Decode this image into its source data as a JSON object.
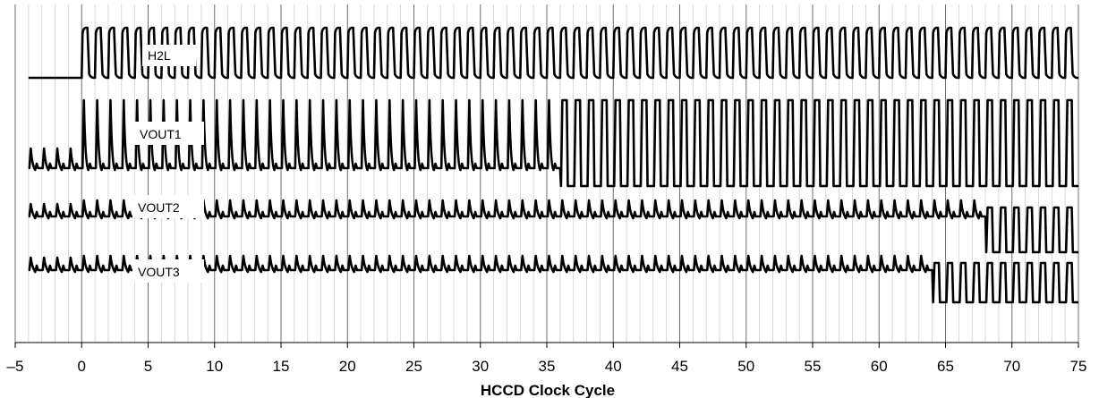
{
  "chart_data": {
    "type": "line",
    "title": "",
    "xlabel": "HCCD Clock Cycle",
    "ylabel": "",
    "xlim": [
      -5,
      75
    ],
    "x_ticks": [
      -5,
      0,
      5,
      10,
      15,
      20,
      25,
      30,
      35,
      40,
      45,
      50,
      55,
      60,
      65,
      70,
      75
    ],
    "x_tick_labels": [
      "–5",
      "0",
      "5",
      "10",
      "15",
      "20",
      "25",
      "30",
      "35",
      "40",
      "45",
      "50",
      "55",
      "60",
      "65",
      "70",
      "75"
    ],
    "vertical_grid_step": 1,
    "legend": "inline labels",
    "line_color": "#000000",
    "series": [
      {
        "name": "H2L",
        "waveform": "square clock",
        "active_from": 0
      },
      {
        "name": "VOUT1",
        "waveform": "pixel pulses",
        "active_from": -4,
        "level_change_at": 36.5
      },
      {
        "name": "VOUT2",
        "waveform": "pixel pulses",
        "active_from": -4,
        "level_change_at": 68.5
      },
      {
        "name": "VOUT3",
        "waveform": "pixel pulses",
        "active_from": -4,
        "level_change_at": 64.5
      }
    ]
  }
}
